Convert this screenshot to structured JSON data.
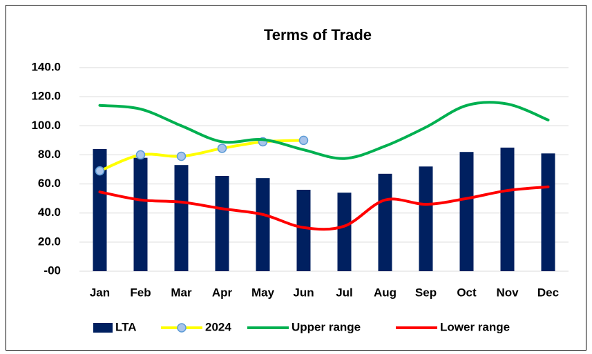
{
  "chart_data": {
    "type": "combo",
    "title": "Terms of Trade",
    "categories": [
      "Jan",
      "Feb",
      "Mar",
      "Apr",
      "May",
      "Jun",
      "Jul",
      "Aug",
      "Sep",
      "Oct",
      "Nov",
      "Dec"
    ],
    "series": [
      {
        "name": "LTA",
        "type": "bar",
        "color": "#002060",
        "values": [
          84,
          78,
          73,
          65.5,
          64,
          56,
          54,
          67,
          72,
          82,
          85,
          81
        ]
      },
      {
        "name": "2024",
        "type": "line",
        "color": "#ffff00",
        "marker": true,
        "marker_color": "#a9c4eb",
        "marker_edge": "#5b9bd5",
        "values": [
          69,
          80,
          79,
          84.5,
          89,
          90,
          null,
          null,
          null,
          null,
          null,
          null
        ]
      },
      {
        "name": "Upper range",
        "type": "line",
        "color": "#00b050",
        "values": [
          114,
          111.5,
          100,
          89,
          90.5,
          83.5,
          77.5,
          86,
          99,
          114,
          115,
          104
        ]
      },
      {
        "name": "Lower range",
        "type": "line",
        "color": "#ff0000",
        "values": [
          54.5,
          49,
          47.5,
          43,
          39,
          30,
          31,
          49,
          46,
          50,
          55.5,
          58
        ]
      }
    ],
    "ylim": [
      0,
      140
    ],
    "yticks": [
      {
        "value": 0,
        "label": "-00"
      },
      {
        "value": 20,
        "label": "20.0"
      },
      {
        "value": 40,
        "label": "40.0"
      },
      {
        "value": 60,
        "label": "60.0"
      },
      {
        "value": 80,
        "label": "80.0"
      },
      {
        "value": 100,
        "label": "100.0"
      },
      {
        "value": 120,
        "label": "120.0"
      },
      {
        "value": 140,
        "label": "140.0"
      }
    ],
    "grid": true,
    "smooth": true,
    "legend": "bottom"
  }
}
